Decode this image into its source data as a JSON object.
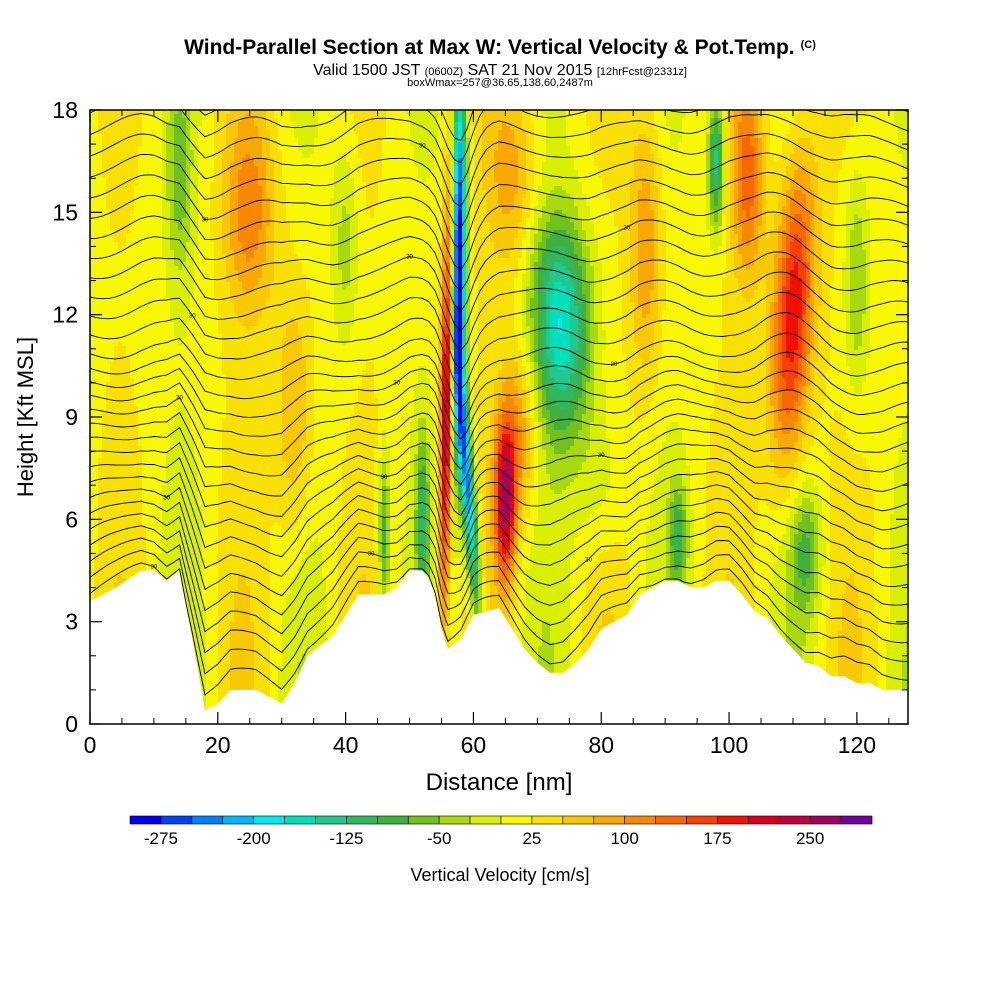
{
  "header": {
    "title": "Wind-Parallel Section at Max W: Vertical Velocity & Pot.Temp.",
    "copyright": "(C)",
    "valid_prefix": "Valid 1500 JST",
    "valid_utc": "(0600Z)",
    "valid_date": "SAT 21 Nov 2015",
    "forecast": "[12hrFcst@2331z]",
    "box_info": "boxWmax=257@36.65,138.60,2487m"
  },
  "chart_data": {
    "type": "heatmap",
    "title": "Wind-Parallel Section at Max W: Vertical Velocity & Pot.Temp.",
    "xlabel": "Distance [nm]",
    "ylabel": "Height [Kft MSL]",
    "xlim": [
      0,
      128
    ],
    "ylim": [
      0,
      18
    ],
    "x_ticks": [
      0,
      20,
      40,
      60,
      80,
      100,
      120
    ],
    "y_ticks": [
      0,
      3,
      6,
      9,
      12,
      15,
      18
    ],
    "colorbar": {
      "label": "Vertical Velocity [cm/s]",
      "tick_labels": [
        "-275",
        "-200",
        "-125",
        "-50",
        "25",
        "100",
        "175",
        "250"
      ],
      "levels": [
        -300,
        -275,
        -250,
        -225,
        -200,
        -175,
        -150,
        -125,
        -100,
        -75,
        -50,
        -25,
        0,
        25,
        50,
        75,
        100,
        125,
        150,
        175,
        200,
        225,
        250,
        275,
        300
      ],
      "colors": [
        "#0000f0",
        "#0040f8",
        "#0080f8",
        "#00b8f8",
        "#00e8f0",
        "#00e0b8",
        "#20c890",
        "#30b860",
        "#40b040",
        "#70c020",
        "#a8d810",
        "#d8f000",
        "#f8f800",
        "#f8e000",
        "#f8c800",
        "#f8a800",
        "#f88800",
        "#f86800",
        "#f84000",
        "#f01000",
        "#d80020",
        "#c00040",
        "#a00060",
        "#7000a0"
      ]
    },
    "terrain_kft": [
      [
        0,
        3.6
      ],
      [
        4,
        4.0
      ],
      [
        8,
        4.5
      ],
      [
        10,
        4.5
      ],
      [
        12,
        4.2
      ],
      [
        14,
        4.5
      ],
      [
        16,
        2.5
      ],
      [
        18,
        0.4
      ],
      [
        20,
        0.6
      ],
      [
        22,
        1.0
      ],
      [
        24,
        1.0
      ],
      [
        26,
        1.0
      ],
      [
        28,
        0.8
      ],
      [
        30,
        0.6
      ],
      [
        32,
        1.2
      ],
      [
        34,
        2.0
      ],
      [
        36,
        2.3
      ],
      [
        38,
        2.6
      ],
      [
        40,
        3.2
      ],
      [
        42,
        3.8
      ],
      [
        44,
        3.8
      ],
      [
        46,
        3.8
      ],
      [
        48,
        4.0
      ],
      [
        50,
        4.5
      ],
      [
        52,
        4.5
      ],
      [
        53,
        4.3
      ],
      [
        54,
        3.8
      ],
      [
        55,
        2.8
      ],
      [
        56,
        2.2
      ],
      [
        58,
        2.5
      ],
      [
        60,
        3.2
      ],
      [
        62,
        3.3
      ],
      [
        64,
        3.4
      ],
      [
        66,
        2.8
      ],
      [
        68,
        2.2
      ],
      [
        70,
        1.8
      ],
      [
        72,
        1.5
      ],
      [
        74,
        1.5
      ],
      [
        76,
        1.8
      ],
      [
        78,
        2.2
      ],
      [
        80,
        2.8
      ],
      [
        82,
        3.0
      ],
      [
        84,
        3.2
      ],
      [
        86,
        3.8
      ],
      [
        88,
        4.0
      ],
      [
        90,
        4.2
      ],
      [
        92,
        4.2
      ],
      [
        94,
        4.0
      ],
      [
        96,
        4.0
      ],
      [
        98,
        4.2
      ],
      [
        100,
        4.2
      ],
      [
        102,
        3.8
      ],
      [
        104,
        3.3
      ],
      [
        106,
        3.1
      ],
      [
        108,
        2.6
      ],
      [
        110,
        2.2
      ],
      [
        112,
        1.8
      ],
      [
        114,
        1.7
      ],
      [
        116,
        1.4
      ],
      [
        118,
        1.4
      ],
      [
        120,
        1.2
      ],
      [
        122,
        1.2
      ],
      [
        124,
        1.0
      ],
      [
        126,
        1.0
      ],
      [
        128,
        1.0
      ]
    ],
    "w_features_cm_s": [
      {
        "x": 58,
        "y": 13.5,
        "w": -275
      },
      {
        "x": 55,
        "y": 10,
        "w": 250
      },
      {
        "x": 65,
        "y": 6,
        "w": 200
      },
      {
        "x": 74,
        "y": 11,
        "w": -125
      },
      {
        "x": 110,
        "y": 12,
        "w": 175
      },
      {
        "x": 98,
        "y": 16,
        "w": -150
      },
      {
        "x": 112,
        "y": 5,
        "w": -75
      }
    ],
    "contour_labels": [
      "30",
      "30",
      "30",
      "30",
      "30",
      "30",
      "30",
      "30",
      "30",
      "30",
      "30",
      "30",
      "30",
      "30",
      "30",
      "30",
      "30",
      "30",
      "30",
      "30",
      "30",
      "30",
      "30",
      "30",
      "30",
      "30",
      "30",
      "30",
      "30",
      "30"
    ]
  }
}
